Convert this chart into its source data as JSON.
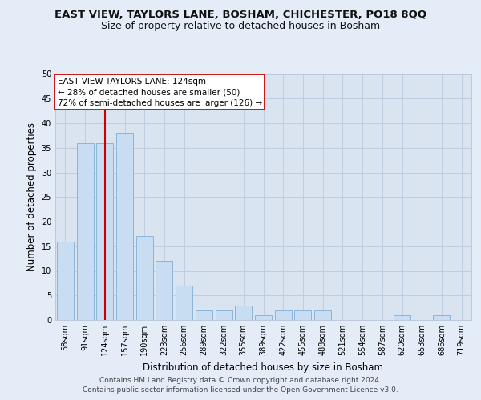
{
  "title1": "EAST VIEW, TAYLORS LANE, BOSHAM, CHICHESTER, PO18 8QQ",
  "title2": "Size of property relative to detached houses in Bosham",
  "xlabel": "Distribution of detached houses by size in Bosham",
  "ylabel": "Number of detached properties",
  "categories": [
    "58sqm",
    "91sqm",
    "124sqm",
    "157sqm",
    "190sqm",
    "223sqm",
    "256sqm",
    "289sqm",
    "322sqm",
    "355sqm",
    "389sqm",
    "422sqm",
    "455sqm",
    "488sqm",
    "521sqm",
    "554sqm",
    "587sqm",
    "620sqm",
    "653sqm",
    "686sqm",
    "719sqm"
  ],
  "values": [
    16,
    36,
    36,
    38,
    17,
    12,
    7,
    2,
    2,
    3,
    1,
    2,
    2,
    2,
    0,
    0,
    0,
    1,
    0,
    1,
    0
  ],
  "bar_color": "#c9ddf2",
  "bar_edge_color": "#8ab4d8",
  "bar_edge_width": 0.7,
  "red_line_index": 2,
  "annotation_line1": "EAST VIEW TAYLORS LANE: 124sqm",
  "annotation_line2": "← 28% of detached houses are smaller (50)",
  "annotation_line3": "72% of semi-detached houses are larger (126) →",
  "annotation_box_color": "#ffffff",
  "annotation_box_edge_color": "#cc0000",
  "annotation_text_color": "#000000",
  "red_line_color": "#cc0000",
  "grid_color": "#bcc8dc",
  "bg_color": "#e4ecf7",
  "plot_bg_color": "#dae3f0",
  "ylim": [
    0,
    50
  ],
  "yticks": [
    0,
    5,
    10,
    15,
    20,
    25,
    30,
    35,
    40,
    45,
    50
  ],
  "footer_line1": "Contains HM Land Registry data © Crown copyright and database right 2024.",
  "footer_line2": "Contains public sector information licensed under the Open Government Licence v3.0.",
  "title1_fontsize": 9.5,
  "title2_fontsize": 9,
  "xlabel_fontsize": 8.5,
  "ylabel_fontsize": 8.5,
  "tick_fontsize": 7,
  "annotation_fontsize": 7.5,
  "footer_fontsize": 6.5
}
